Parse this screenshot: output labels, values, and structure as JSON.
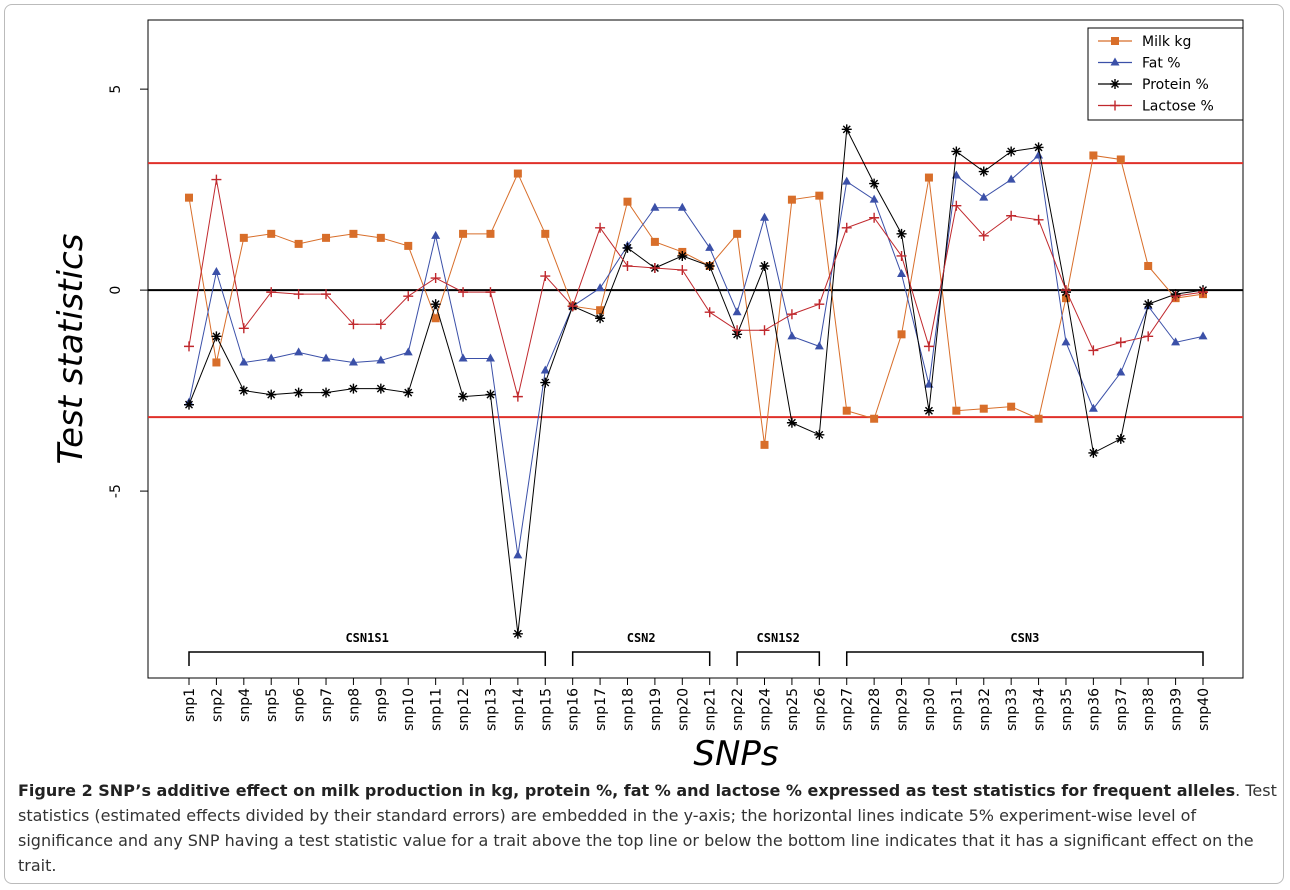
{
  "chart_data": {
    "type": "line",
    "y_label": "Test statistics",
    "x_label": "SNPs",
    "categories": [
      "snp1",
      "snp2",
      "snp4",
      "snp5",
      "snp6",
      "snp7",
      "snp8",
      "snp9",
      "snp10",
      "snp11",
      "snp12",
      "snp13",
      "snp14",
      "snp15",
      "snp16",
      "snp17",
      "snp18",
      "snp19",
      "snp20",
      "snp21",
      "snp22",
      "snp24",
      "snp25",
      "snp26",
      "snp27",
      "snp28",
      "snp29",
      "snp30",
      "snp31",
      "snp32",
      "snp33",
      "snp34",
      "snp35",
      "snp36",
      "snp37",
      "snp38",
      "snp39",
      "snp40"
    ],
    "series": [
      {
        "name": "Milk kg",
        "color": "#d86e2a",
        "marker": "square",
        "values": [
          2.3,
          -1.8,
          1.3,
          1.4,
          1.15,
          1.3,
          1.4,
          1.3,
          1.1,
          -0.7,
          1.4,
          1.4,
          2.9,
          1.4,
          -0.4,
          -0.5,
          2.2,
          1.2,
          0.95,
          0.6,
          1.4,
          -3.85,
          2.25,
          2.35,
          -3.0,
          -3.2,
          -1.1,
          2.8,
          -3.0,
          -2.95,
          -2.9,
          -3.2,
          -0.2,
          3.35,
          3.25,
          0.6,
          -0.2,
          -0.1
        ]
      },
      {
        "name": "Fat %",
        "color": "#3b50a8",
        "marker": "triangle",
        "values": [
          -2.8,
          0.45,
          -1.8,
          -1.7,
          -1.55,
          -1.7,
          -1.8,
          -1.75,
          -1.55,
          1.35,
          -1.7,
          -1.7,
          -6.6,
          -2.0,
          -0.4,
          0.05,
          1.1,
          2.05,
          2.05,
          1.05,
          -0.55,
          1.8,
          -1.15,
          -1.4,
          2.7,
          2.25,
          0.4,
          -2.35,
          2.85,
          2.3,
          2.75,
          3.35,
          -1.3,
          -2.95,
          -2.05,
          -0.4,
          -1.3,
          -1.15
        ]
      },
      {
        "name": "Protein %",
        "color": "#000000",
        "marker": "asterisk",
        "values": [
          -2.85,
          -1.15,
          -2.5,
          -2.6,
          -2.55,
          -2.55,
          -2.45,
          -2.45,
          -2.55,
          -0.35,
          -2.65,
          -2.6,
          -8.55,
          -2.3,
          -0.4,
          -0.7,
          1.05,
          0.55,
          0.85,
          0.6,
          -1.1,
          0.6,
          -3.3,
          -3.6,
          4.0,
          2.65,
          1.4,
          -3.0,
          3.45,
          2.95,
          3.45,
          3.55,
          -0.05,
          -4.05,
          -3.7,
          -0.35,
          -0.1,
          0.0
        ]
      },
      {
        "name": "Lactose %",
        "color": "#c0282d",
        "marker": "plus",
        "values": [
          -1.4,
          2.75,
          -0.95,
          -0.05,
          -0.1,
          -0.1,
          -0.85,
          -0.85,
          -0.15,
          0.3,
          -0.05,
          -0.05,
          -2.65,
          0.35,
          -0.4,
          1.55,
          0.6,
          0.55,
          0.5,
          -0.55,
          -1.0,
          -1.0,
          -0.6,
          -0.35,
          1.55,
          1.8,
          0.85,
          -1.4,
          2.1,
          1.35,
          1.85,
          1.75,
          0.0,
          -1.5,
          -1.3,
          -1.15,
          -0.15,
          -0.05
        ]
      }
    ],
    "ylim": [
      -9.65,
      6.72
    ],
    "yticks": [
      -5,
      0,
      5
    ],
    "reference_lines": [
      {
        "value": 3.16,
        "color": "#e0302a"
      },
      {
        "value": -3.16,
        "color": "#e0302a"
      },
      {
        "value": 0,
        "color": "#000000"
      }
    ],
    "groups": [
      {
        "label": "CSN1S1",
        "from": "snp1",
        "to": "snp15"
      },
      {
        "label": "CSN2",
        "from": "snp16",
        "to": "snp21"
      },
      {
        "label": "CSN1S2",
        "from": "snp22",
        "to": "snp26"
      },
      {
        "label": "CSN3",
        "from": "snp27",
        "to": "snp40"
      }
    ],
    "legend": "top-right"
  },
  "caption": {
    "title": "Figure 2 SNP’s additive effect on milk production in kg, protein %, fat % and lactose % expressed as test statistics for frequent alleles",
    "text": ". Test statistics (estimated effects divided by their standard errors) are embedded in the y-axis; the horizontal lines indicate 5% experiment-wise level of significance and any SNP having a test statistic value for a trait above the top line or below the bottom line indicates that it has a significant effect on the trait."
  }
}
